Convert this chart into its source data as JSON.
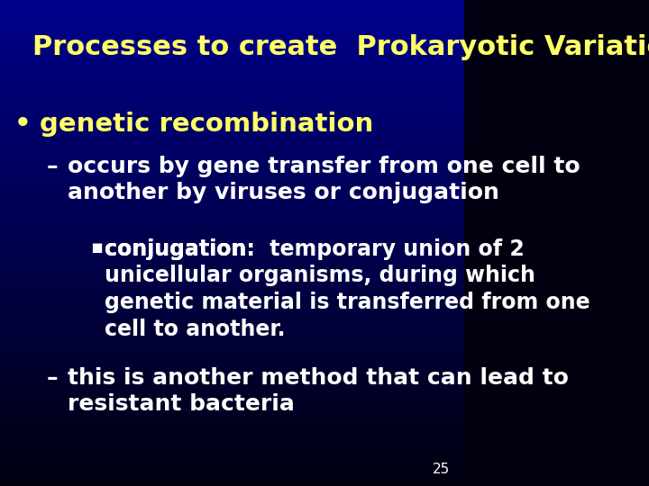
{
  "title": "Processes to create  Prokaryotic Variation",
  "title_color": "#FFFF66",
  "title_fontsize": 22,
  "background_top": "#000010",
  "background_bottom": "#00008B",
  "bullet1": "genetic recombination",
  "bullet1_color": "#FFFF66",
  "bullet1_fontsize": 21,
  "sub1_text": "occurs by gene transfer from one cell to\nanother by viruses or conjugation",
  "sub1_color": "#FFFFFF",
  "sub1_fontsize": 18,
  "sub2_underline": "conjugation:",
  "sub2_rest": "  temporary union of 2\nunicellular organisms, during which\ngenetic material is transferred from one\ncell to another.",
  "sub2_color": "#FFFFFF",
  "sub2_fontsize": 17,
  "sub3_text": "this is another method that can lead to\nresistant bacteria",
  "sub3_color": "#FFFFFF",
  "sub3_fontsize": 18,
  "page_number": "25",
  "page_num_color": "#FFFFFF",
  "page_num_fontsize": 11
}
